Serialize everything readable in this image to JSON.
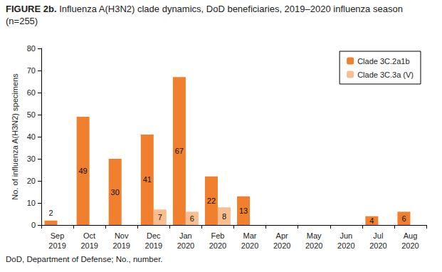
{
  "chart_data": {
    "type": "bar",
    "title": "FIGURE 2b. Influenza A(H3N2) clade dynamics, DoD beneficiaries, 2019–2020 influenza season (n=255)",
    "footnote": "DoD, Department of Defense; No., number.",
    "ylabel": "No. of influenza A(H3N2) specimens",
    "categories": [
      "Sep 2019",
      "Oct 2019",
      "Nov 2019",
      "Dec 2019",
      "Jan 2020",
      "Feb 2020",
      "Mar 2020",
      "Apr 2020",
      "May 2020",
      "Jun 2020",
      "Jul 2020",
      "Aug 2020"
    ],
    "series": [
      {
        "name": "Clade 3C.2a1b",
        "color": "#f07f2e",
        "values": [
          2,
          49,
          30,
          41,
          67,
          22,
          13,
          null,
          null,
          null,
          4,
          6
        ]
      },
      {
        "name": "Clade 3C.3a (V)",
        "color": "#f9be8f",
        "values": [
          null,
          null,
          null,
          7,
          6,
          8,
          null,
          null,
          null,
          null,
          null,
          null
        ]
      }
    ],
    "ylim": [
      0,
      80
    ],
    "yticks": [
      0,
      10,
      20,
      30,
      40,
      50,
      60,
      70,
      80
    ],
    "grid": false,
    "legend": "upper right",
    "data_labels": true
  }
}
